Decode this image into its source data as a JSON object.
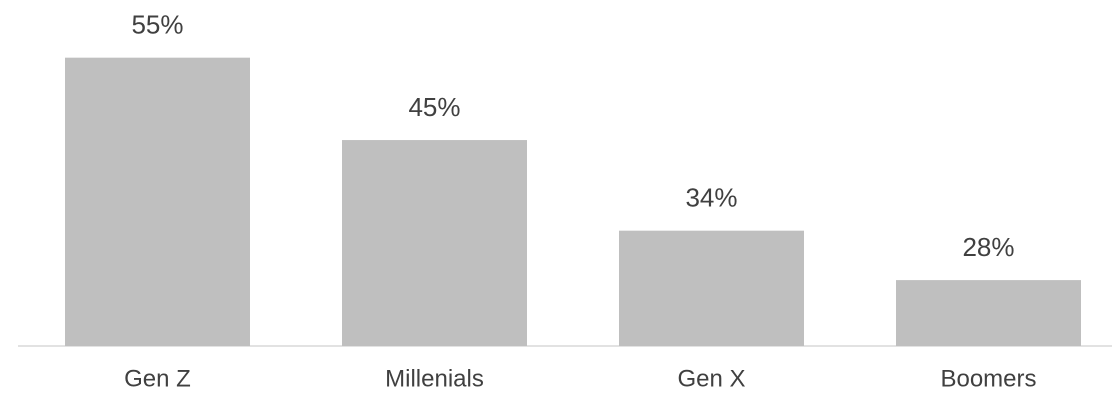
{
  "chart_data": {
    "type": "bar",
    "categories": [
      "Gen Z",
      "Millenials",
      "Gen X",
      "Boomers"
    ],
    "values": [
      55,
      45,
      34,
      28
    ],
    "value_labels": [
      "55%",
      "45%",
      "34%",
      "28%"
    ],
    "color": "#bfbfbf",
    "ylim": [
      20,
      62
    ]
  }
}
